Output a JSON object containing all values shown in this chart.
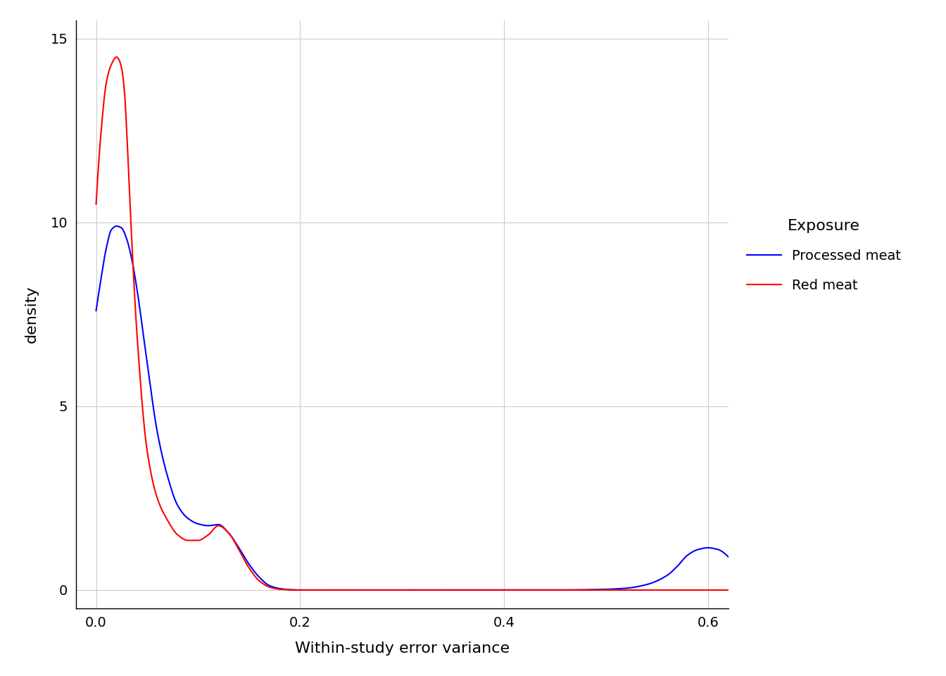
{
  "xlabel": "Within-study error variance",
  "ylabel": "density",
  "xlim": [
    -0.02,
    0.62
  ],
  "ylim": [
    -0.5,
    15.5
  ],
  "yticks": [
    0,
    5,
    10,
    15
  ],
  "xticks": [
    0.0,
    0.2,
    0.4,
    0.6
  ],
  "background_color": "#ffffff",
  "grid_color": "#cccccc",
  "line_color_processed": "#0000ff",
  "line_color_red": "#ff0000",
  "line_width": 1.5,
  "legend_title": "Exposure",
  "legend_processed": "Processed meat",
  "legend_red": "Red meat",
  "tick_label_size": 14,
  "axis_label_size": 16,
  "legend_title_size": 16,
  "legend_text_size": 14,
  "proc_key_x": [
    0.0,
    0.005,
    0.01,
    0.015,
    0.02,
    0.025,
    0.03,
    0.035,
    0.04,
    0.05,
    0.06,
    0.07,
    0.08,
    0.09,
    0.1,
    0.11,
    0.12,
    0.13,
    0.14,
    0.15,
    0.16,
    0.17,
    0.18,
    0.19,
    0.2,
    0.22,
    0.25,
    0.3,
    0.35,
    0.4,
    0.45,
    0.5,
    0.52,
    0.54,
    0.56,
    0.57,
    0.58,
    0.59,
    0.6,
    0.61,
    0.62
  ],
  "proc_key_y": [
    7.6,
    8.5,
    9.3,
    9.8,
    9.9,
    9.85,
    9.55,
    9.0,
    8.2,
    6.2,
    4.3,
    3.1,
    2.3,
    1.95,
    1.8,
    1.75,
    1.78,
    1.55,
    1.15,
    0.7,
    0.35,
    0.12,
    0.04,
    0.01,
    0.0,
    0.0,
    0.0,
    0.0,
    0.0,
    0.0,
    0.0,
    0.02,
    0.05,
    0.15,
    0.4,
    0.65,
    0.95,
    1.1,
    1.15,
    1.1,
    0.9
  ],
  "red_key_x": [
    0.0,
    0.005,
    0.01,
    0.015,
    0.02,
    0.022,
    0.025,
    0.028,
    0.03,
    0.035,
    0.04,
    0.05,
    0.06,
    0.07,
    0.08,
    0.09,
    0.1,
    0.11,
    0.12,
    0.13,
    0.14,
    0.15,
    0.16,
    0.17,
    0.18,
    0.2,
    0.25,
    0.3,
    0.62
  ],
  "red_key_y": [
    10.5,
    12.5,
    13.8,
    14.3,
    14.5,
    14.45,
    14.2,
    13.5,
    12.5,
    9.5,
    7.0,
    3.8,
    2.5,
    1.9,
    1.5,
    1.35,
    1.35,
    1.5,
    1.75,
    1.55,
    1.1,
    0.6,
    0.25,
    0.08,
    0.02,
    0.0,
    0.0,
    0.0,
    0.0
  ]
}
